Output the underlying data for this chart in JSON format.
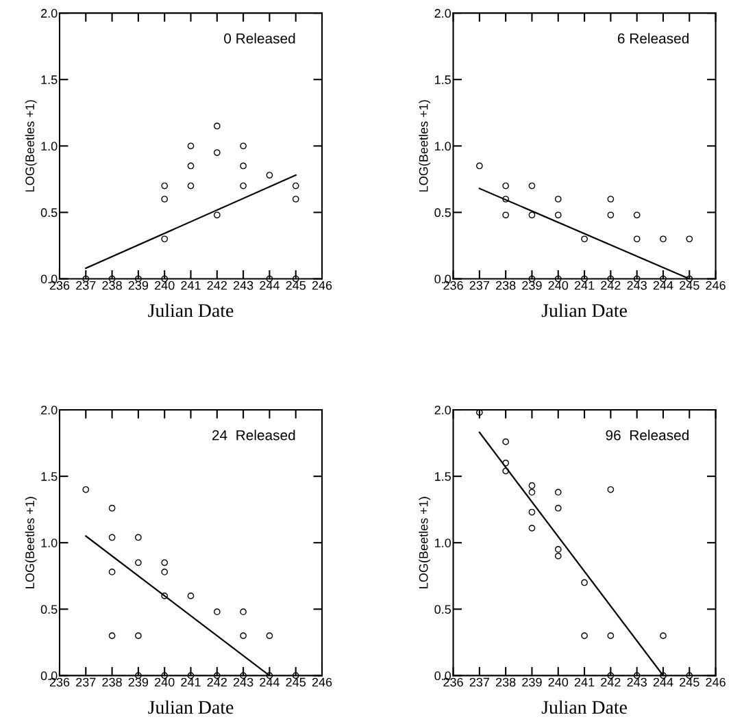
{
  "chart_data": [
    {
      "type": "scatter",
      "annotations": [
        "0 Released"
      ],
      "xlabel": "Julian Date",
      "ylabel": "LOG(Beetles +1)",
      "xlim": [
        236,
        246
      ],
      "xticks": [
        236,
        237,
        238,
        239,
        240,
        241,
        242,
        243,
        244,
        245,
        246
      ],
      "ylim": [
        0,
        2
      ],
      "yticks": [
        {
          "value": 0,
          "label": "0.0"
        },
        {
          "value": 0.5,
          "label": "0.5"
        },
        {
          "value": 1,
          "label": "1.0"
        },
        {
          "value": 1.5,
          "label": "1.5"
        },
        {
          "value": 2,
          "label": "2.0"
        }
      ],
      "marker": "circle",
      "series": [
        {
          "color": "#000000",
          "x": [
            237,
            238,
            239,
            240,
            240,
            240,
            240,
            241,
            241,
            241,
            242,
            242,
            242,
            243,
            243,
            243,
            244,
            244,
            245,
            245,
            245
          ],
          "values": [
            0,
            0,
            0,
            0,
            0.7,
            0.6,
            0.3,
            1.0,
            0.85,
            0.7,
            1.15,
            0.95,
            0.48,
            1.0,
            0.85,
            0.7,
            0,
            0.78,
            0,
            0.7,
            0.6
          ]
        },
        {
          "type": "line",
          "marker": "none",
          "color": "#000000",
          "x": [
            237,
            245
          ],
          "values": [
            0.08,
            0.78
          ]
        }
      ]
    },
    {
      "type": "scatter",
      "annotations": [
        "6 Released"
      ],
      "xlabel": "Julian Date",
      "ylabel": "LOG(Beetles +1)",
      "xlim": [
        236,
        246
      ],
      "xticks": [
        236,
        237,
        238,
        239,
        240,
        241,
        242,
        243,
        244,
        245,
        246
      ],
      "ylim": [
        0,
        2
      ],
      "yticks": [
        {
          "value": 0,
          "label": "0.0"
        },
        {
          "value": 0.5,
          "label": "0.5"
        },
        {
          "value": 1,
          "label": "1.0"
        },
        {
          "value": 1.5,
          "label": "1.5"
        },
        {
          "value": 2,
          "label": "2.0"
        }
      ],
      "marker": "circle",
      "series": [
        {
          "color": "#000000",
          "x": [
            237,
            238,
            238,
            238,
            239,
            239,
            239,
            240,
            240,
            240,
            241,
            241,
            242,
            242,
            242,
            243,
            243,
            243,
            244,
            244,
            245,
            245
          ],
          "values": [
            0.85,
            0.7,
            0.6,
            0.48,
            0.7,
            0.48,
            0,
            0.6,
            0.48,
            0,
            0.3,
            0,
            0.6,
            0.48,
            0,
            0.48,
            0.3,
            0,
            0.3,
            0,
            0.3,
            0
          ]
        },
        {
          "type": "line",
          "marker": "none",
          "color": "#000000",
          "x": [
            237,
            245
          ],
          "values": [
            0.68,
            0.0
          ]
        }
      ]
    },
    {
      "type": "scatter",
      "annotations": [
        "24  Released"
      ],
      "xlabel": "Julian Date",
      "ylabel": "LOG(Beetles +1)",
      "xlim": [
        236,
        246
      ],
      "xticks": [
        236,
        237,
        238,
        239,
        240,
        241,
        242,
        243,
        244,
        245,
        246
      ],
      "ylim": [
        0,
        2
      ],
      "yticks": [
        {
          "value": 0,
          "label": "0.0"
        },
        {
          "value": 0.5,
          "label": "0.5"
        },
        {
          "value": 1,
          "label": "1.0"
        },
        {
          "value": 1.5,
          "label": "1.5"
        },
        {
          "value": 2,
          "label": "2.0"
        }
      ],
      "marker": "circle",
      "series": [
        {
          "color": "#000000",
          "x": [
            237,
            238,
            238,
            238,
            238,
            239,
            239,
            239,
            239,
            240,
            240,
            240,
            240,
            241,
            241,
            242,
            242,
            243,
            243,
            243,
            244,
            244,
            245
          ],
          "values": [
            1.4,
            1.26,
            1.04,
            0.78,
            0.3,
            1.04,
            0.85,
            0.3,
            0,
            0.85,
            0.78,
            0.6,
            0,
            0.6,
            0,
            0.48,
            0,
            0.48,
            0.3,
            0,
            0.3,
            0,
            0
          ]
        },
        {
          "type": "line",
          "marker": "none",
          "color": "#000000",
          "x": [
            237,
            244
          ],
          "values": [
            1.05,
            0.0
          ]
        }
      ]
    },
    {
      "type": "scatter",
      "annotations": [
        "96  Released"
      ],
      "xlabel": "Julian Date",
      "ylabel": "LOG(Beetles +1)",
      "xlim": [
        236,
        246
      ],
      "xticks": [
        236,
        237,
        238,
        239,
        240,
        241,
        242,
        243,
        244,
        245,
        246
      ],
      "ylim": [
        0,
        2
      ],
      "yticks": [
        {
          "value": 0,
          "label": "0.0"
        },
        {
          "value": 0.5,
          "label": "0.5"
        },
        {
          "value": 1,
          "label": "1.0"
        },
        {
          "value": 1.5,
          "label": "1.5"
        },
        {
          "value": 2,
          "label": "2.0"
        }
      ],
      "marker": "circle",
      "series": [
        {
          "color": "#000000",
          "x": [
            237,
            238,
            238,
            238,
            239,
            239,
            239,
            239,
            240,
            240,
            240,
            240,
            241,
            241,
            242,
            242,
            242,
            243,
            244,
            244,
            245
          ],
          "values": [
            1.98,
            1.76,
            1.6,
            1.54,
            1.43,
            1.38,
            1.23,
            1.11,
            1.38,
            1.26,
            0.95,
            0.9,
            0.7,
            0.3,
            1.4,
            0.3,
            0,
            0,
            0.3,
            0,
            0
          ]
        },
        {
          "type": "line",
          "marker": "none",
          "color": "#000000",
          "x": [
            237,
            244
          ],
          "values": [
            1.83,
            0.0
          ]
        }
      ]
    }
  ]
}
